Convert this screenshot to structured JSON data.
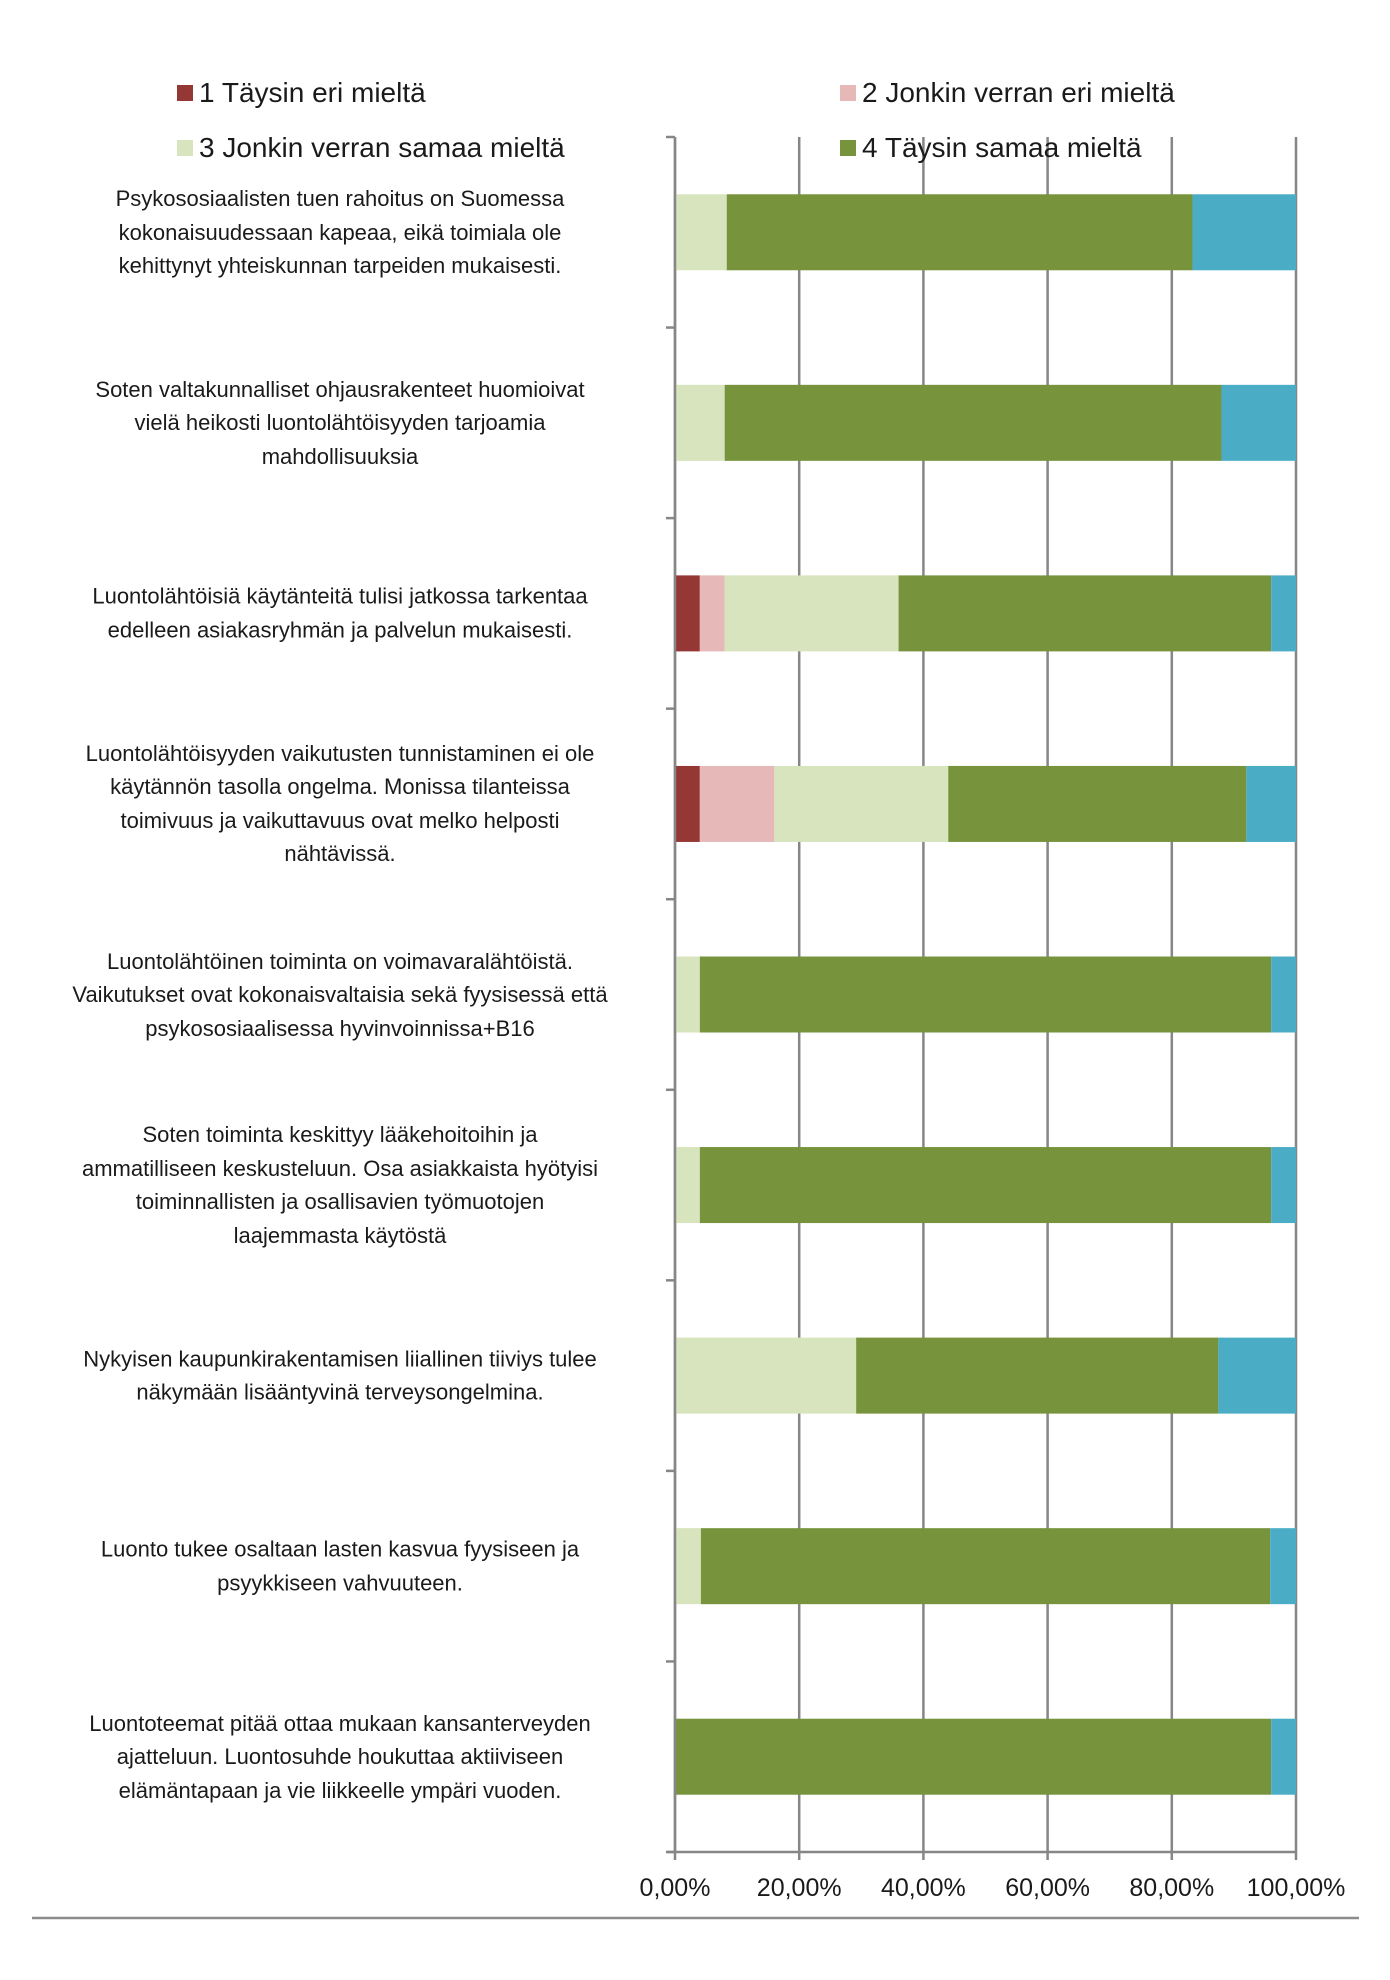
{
  "chart_data": {
    "type": "bar",
    "orientation": "horizontal",
    "stacked": "percent",
    "legend": {
      "placement": "top"
    },
    "grid": true,
    "xlim": [
      0,
      100
    ],
    "xticks": [
      "0,00%",
      "20,00%",
      "40,00%",
      "60,00%",
      "80,00%",
      "100,00%"
    ],
    "categories": [
      "Psykososiaalisten tuen rahoitus on Suomessa\nkokonaisuudessaan kapeaa, eikä toimiala ole\nkehittynyt yhteiskunnan tarpeiden mukaisesti.",
      "Soten valtakunnalliset ohjausrakenteet huomioivat\nvielä heikosti luontolähtöisyyden tarjoamia\nmahdollisuuksia",
      "Luontolähtöisiä käytänteitä tulisi jatkossa tarkentaa\nedelleen asiakasryhmän ja palvelun mukaisesti.",
      "Luontolähtöisyyden vaikutusten tunnistaminen ei ole\nkäytännön tasolla ongelma. Monissa tilanteissa\ntoimivuus ja vaikuttavuus ovat melko helposti\nnähtävissä.",
      "Luontolähtöinen toiminta on voimavaralähtöistä.\nVaikutukset ovat kokonaisvaltaisia sekä fyysisessä että\npsykososiaalisessa hyvinvoinnissa+B16",
      "Soten toiminta keskittyy lääkehoitoihin ja\nammatilliseen keskusteluun. Osa asiakkaista hyötyisi\ntoiminnallisten ja osallisavien työmuotojen\nlaajemmasta käytöstä",
      "Nykyisen kaupunkirakentamisen liiallinen tiiviys tulee\nnäkymään lisääntyvinä terveysongelmina.",
      "Luonto tukee osaltaan lasten kasvua fyysiseen ja\npsyykkiseen vahvuuteen.",
      "Luontoteemat pitää ottaa mukaan kansanterveyden\najatteluun. Luontosuhde houkuttaa aktiiviseen\nelämäntapaan ja vie liikkeelle ympäri vuoden."
    ],
    "series": [
      {
        "name": "1 Täysin eri mieltä",
        "color": "#953735",
        "values": [
          0,
          0,
          4,
          4,
          0,
          0,
          0,
          0,
          0
        ]
      },
      {
        "name": "2 Jonkin verran eri mieltä",
        "color": "#e6b9b8",
        "values": [
          0,
          0,
          4,
          12,
          0,
          0,
          0,
          0,
          0
        ]
      },
      {
        "name": "3 Jonkin verran samaa mieltä",
        "color": "#d7e4bd",
        "values": [
          8.33,
          8,
          28,
          28,
          4,
          4,
          29.17,
          4.17,
          0
        ]
      },
      {
        "name": "4 Täysin samaa mieltä",
        "color": "#77933c",
        "values": [
          75,
          80,
          60,
          48,
          92,
          92,
          58.33,
          91.67,
          96
        ]
      },
      {
        "color": "#4bacc6",
        "values": [
          16.67,
          12,
          4,
          8,
          4,
          4,
          12.5,
          4.17,
          4
        ]
      }
    ]
  }
}
